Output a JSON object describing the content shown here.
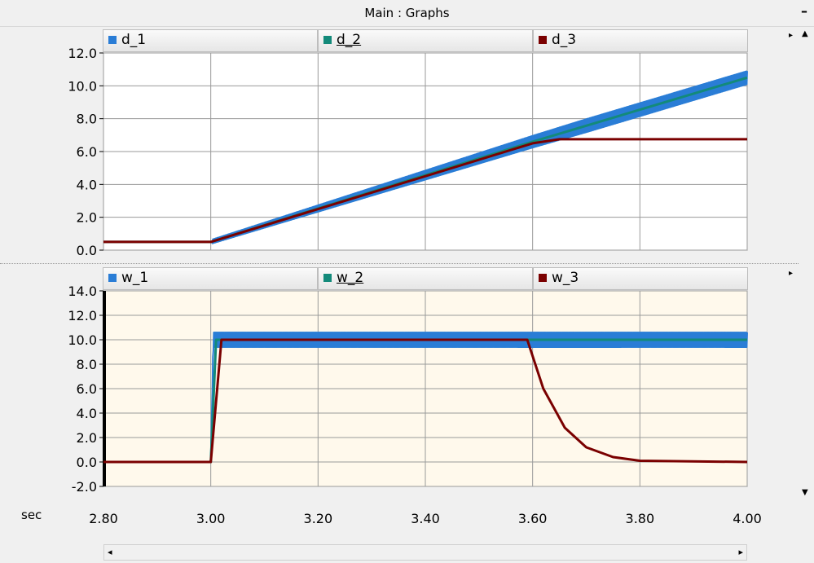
{
  "window": {
    "title": "Main : Graphs",
    "minimize_label": "–"
  },
  "x_axis": {
    "unit": "sec",
    "ticks": [
      "2.80",
      "3.00",
      "3.20",
      "3.40",
      "3.60",
      "3.80",
      "4.00"
    ]
  },
  "colors": {
    "series1": "#2a7dd6",
    "series2": "#138a7a",
    "series3": "#7a0000",
    "panel2_bg": "#fff9ec",
    "grid": "#9a9a9a"
  },
  "chart_data": [
    {
      "type": "line",
      "xlim": [
        2.8,
        4.0
      ],
      "ylim": [
        0,
        12
      ],
      "y_ticks": [
        "0.0",
        "2.0",
        "4.0",
        "6.0",
        "8.0",
        "10.0",
        "12.0"
      ],
      "grid": true,
      "legend": "top",
      "series": [
        {
          "name": "d_1",
          "x": [
            2.8,
            3.0,
            3.6,
            4.0
          ],
          "y": [
            0.5,
            0.5,
            6.6,
            10.5
          ],
          "ripple": 0.4
        },
        {
          "name": "d_2",
          "x": [
            2.8,
            3.0,
            3.6,
            4.0
          ],
          "y": [
            0.5,
            0.5,
            6.6,
            10.5
          ]
        },
        {
          "name": "d_3",
          "x": [
            2.8,
            3.0,
            3.6,
            3.65,
            4.0
          ],
          "y": [
            0.5,
            0.5,
            6.5,
            6.75,
            6.75
          ]
        }
      ]
    },
    {
      "type": "line",
      "xlim": [
        2.8,
        4.0
      ],
      "ylim": [
        -2,
        14
      ],
      "y_ticks": [
        "-2.0",
        "0.0",
        "2.0",
        "4.0",
        "6.0",
        "8.0",
        "10.0",
        "12.0",
        "14.0"
      ],
      "grid": true,
      "legend": "top",
      "series": [
        {
          "name": "w_1",
          "x": [
            2.8,
            3.0,
            3.005,
            4.0
          ],
          "y": [
            0.0,
            0.0,
            10.0,
            10.0
          ],
          "ripple": 0.6
        },
        {
          "name": "w_2",
          "x": [
            2.8,
            3.0,
            3.01,
            4.0
          ],
          "y": [
            0.0,
            0.0,
            10.0,
            10.0
          ]
        },
        {
          "name": "w_3",
          "x": [
            2.8,
            3.0,
            3.02,
            3.59,
            3.62,
            3.66,
            3.7,
            3.75,
            3.8,
            4.0
          ],
          "y": [
            0.0,
            0.0,
            10.0,
            10.0,
            6.0,
            2.8,
            1.2,
            0.4,
            0.1,
            0.0
          ]
        }
      ]
    }
  ]
}
